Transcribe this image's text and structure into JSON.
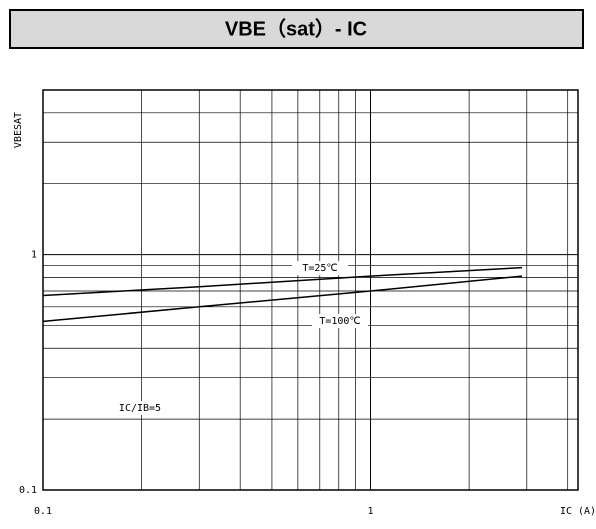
{
  "chart_data": {
    "type": "line",
    "title": "VBE（sat）- IC",
    "x_label": "IC (A)",
    "y_label": "VBESAT",
    "x_log": true,
    "y_log": true,
    "grid": true,
    "xlim": [
      0.1,
      4.3
    ],
    "ylim": [
      0.1,
      5
    ],
    "xticks": [
      0.1,
      1
    ],
    "yticks": [
      0.1,
      1
    ],
    "x": [
      0.1,
      0.3,
      1,
      2.9
    ],
    "series": [
      {
        "name": "T=25℃",
        "color": "#000000",
        "values": [
          0.67,
          0.73,
          0.81,
          0.88
        ]
      },
      {
        "name": "T=100℃",
        "color": "#000000",
        "values": [
          0.52,
          0.6,
          0.7,
          0.81
        ]
      }
    ],
    "annotation": "IC/IB=5"
  }
}
